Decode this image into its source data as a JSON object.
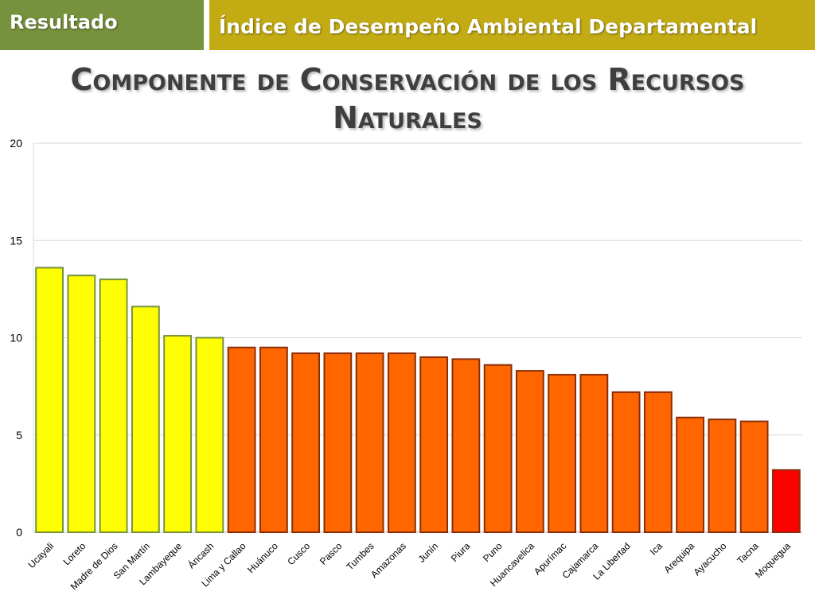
{
  "header": {
    "section_label": "Resultado",
    "banner_title": "Índice de Desempeño Ambiental Departamental"
  },
  "page_title_line1": "Componente de Conservación de los Recursos",
  "page_title_line2": "Naturales",
  "colors": {
    "section_banner": "#76923c",
    "title_banner": "#c3ab14",
    "high": "#ffff00",
    "high_border": "#77933c",
    "mid": "#ff6600",
    "mid_border": "#8b2e0a",
    "low": "#ff0000",
    "low_border": "#8b2e0a"
  },
  "chart_data": {
    "type": "bar",
    "title": "",
    "xlabel": "",
    "ylabel": "",
    "ylim": [
      0,
      20
    ],
    "yticks": [
      0,
      5,
      10,
      15,
      20
    ],
    "grid": true,
    "categories": [
      "Ucayali",
      "Loreto",
      "Madre de Dios",
      "San Martín",
      "Lambayeque",
      "Áncash",
      "Lima y Callao",
      "Huánuco",
      "Cusco",
      "Pasco",
      "Tumbes",
      "Amazonas",
      "Junín",
      "Piura",
      "Puno",
      "Huancavelica",
      "Apurímac",
      "Cajamarca",
      "La Libertad",
      "Ica",
      "Arequipa",
      "Ayacucho",
      "Tacna",
      "Moquegua"
    ],
    "values": [
      13.6,
      13.2,
      13.0,
      11.6,
      10.1,
      10.0,
      9.5,
      9.5,
      9.2,
      9.2,
      9.2,
      9.2,
      9.0,
      8.9,
      8.6,
      8.3,
      8.1,
      8.1,
      7.2,
      7.2,
      5.9,
      5.8,
      5.7,
      3.2
    ],
    "bar_color_groups": [
      "high",
      "high",
      "high",
      "high",
      "high",
      "high",
      "mid",
      "mid",
      "mid",
      "mid",
      "mid",
      "mid",
      "mid",
      "mid",
      "mid",
      "mid",
      "mid",
      "mid",
      "mid",
      "mid",
      "mid",
      "mid",
      "mid",
      "low"
    ]
  }
}
